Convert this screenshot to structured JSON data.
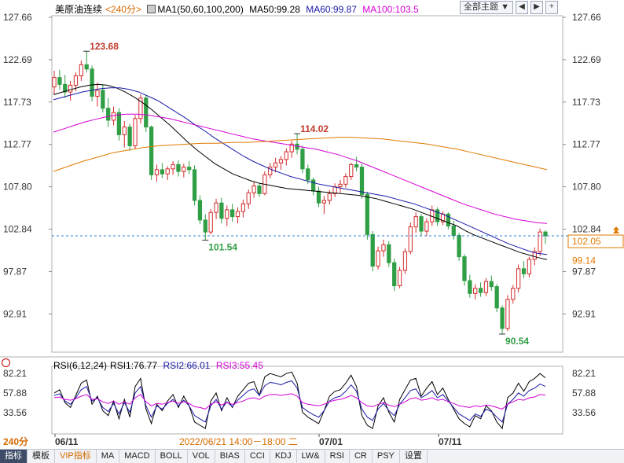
{
  "legend": {
    "instrument": "美原油连续",
    "period": "<240分>",
    "ma_def": "MA1(50,60,100,200)",
    "ma50": "MA50:99.28",
    "ma60": "MA60:99.87",
    "ma100": "MA100:103.5",
    "colors": {
      "ma50": "#000000",
      "ma60": "#1a1aa6",
      "ma100": "#d400d4",
      "ma200": "#e07a00"
    }
  },
  "toolbar": {
    "theme_label": "全部主题",
    "theme_arrow": "▼",
    "prev": "◀",
    "next": "▶",
    "add": "+"
  },
  "price_axis": {
    "ticks": [
      "127.66",
      "122.69",
      "117.73",
      "112.77",
      "107.80",
      "102.84",
      "97.87",
      "92.91"
    ],
    "last_price": "102.05",
    "ma_value": "99.14"
  },
  "annotations": {
    "high1": "123.68",
    "high2": "114.02",
    "low1": "101.54",
    "low2": "90.54"
  },
  "rsi": {
    "title": "RSI(6,12,24)",
    "rsi1": "RSI1:76.77",
    "rsi2": "RSI2:66.01",
    "rsi3": "RSI3:55.45",
    "ticks": [
      "82.21",
      "57.88",
      "33.56"
    ],
    "colors": {
      "rsi1": "#000000",
      "rsi2": "#1a1aa6",
      "rsi3": "#d400d4"
    }
  },
  "time_axis": {
    "period_label": "240分",
    "labels": [
      "06/11",
      "07/01",
      "07/11"
    ],
    "cursor_time": "2022/06/21 14:00－18:00 二"
  },
  "tabs": [
    "指标",
    "模板",
    "VIP指标",
    "MA",
    "MACD",
    "BOLL",
    "VOL",
    "BIAS",
    "CCI",
    "KDJ",
    "LW&",
    "RSI",
    "CR",
    "PSY",
    "设置"
  ],
  "chart_data": {
    "type": "candlestick",
    "title": "",
    "ylim": [
      90.0,
      127.66
    ],
    "x_labels": [
      "06/11",
      "07/01",
      "07/11"
    ],
    "candles_ohlc": [
      [
        119.5,
        121.4,
        118.6,
        120.6
      ],
      [
        120.6,
        121.5,
        119.2,
        119.8
      ],
      [
        119.8,
        120.9,
        118.2,
        118.9
      ],
      [
        118.9,
        120.2,
        117.9,
        119.7
      ],
      [
        119.7,
        121.2,
        119.0,
        120.8
      ],
      [
        120.8,
        122.6,
        120.2,
        122.1
      ],
      [
        122.1,
        123.68,
        121.2,
        121.6
      ],
      [
        121.6,
        122.0,
        117.8,
        118.4
      ],
      [
        118.4,
        120.0,
        117.2,
        119.1
      ],
      [
        119.1,
        119.8,
        116.5,
        117.0
      ],
      [
        117.0,
        118.2,
        114.8,
        115.6
      ],
      [
        115.6,
        117.2,
        115.0,
        116.5
      ],
      [
        116.5,
        117.0,
        113.2,
        113.9
      ],
      [
        113.9,
        115.5,
        112.4,
        114.8
      ],
      [
        114.8,
        115.2,
        112.0,
        112.6
      ],
      [
        112.6,
        116.2,
        112.2,
        115.8
      ],
      [
        115.8,
        118.6,
        115.2,
        118.2
      ],
      [
        118.2,
        118.5,
        114.2,
        114.8
      ],
      [
        114.8,
        115.0,
        108.6,
        109.2
      ],
      [
        109.2,
        110.4,
        108.4,
        109.8
      ],
      [
        109.8,
        110.6,
        108.8,
        109.3
      ],
      [
        109.3,
        110.2,
        108.6,
        109.9
      ],
      [
        109.9,
        110.8,
        109.2,
        110.4
      ],
      [
        110.4,
        110.9,
        109.0,
        109.6
      ],
      [
        109.6,
        110.5,
        108.9,
        110.1
      ],
      [
        110.1,
        110.8,
        109.3,
        109.8
      ],
      [
        109.8,
        110.3,
        105.6,
        106.2
      ],
      [
        106.2,
        106.8,
        103.4,
        103.9
      ],
      [
        103.9,
        104.6,
        101.54,
        102.5
      ],
      [
        102.5,
        105.2,
        102.2,
        104.8
      ],
      [
        104.8,
        106.4,
        104.0,
        105.9
      ],
      [
        105.9,
        106.5,
        103.5,
        104.1
      ],
      [
        104.1,
        105.6,
        103.2,
        105.1
      ],
      [
        105.1,
        105.8,
        103.7,
        104.3
      ],
      [
        104.3,
        105.4,
        103.5,
        104.9
      ],
      [
        104.9,
        106.3,
        104.2,
        105.8
      ],
      [
        105.8,
        107.5,
        105.2,
        107.1
      ],
      [
        107.1,
        108.4,
        106.5,
        107.9
      ],
      [
        107.9,
        108.2,
        106.6,
        107.0
      ],
      [
        107.0,
        109.6,
        106.8,
        109.2
      ],
      [
        109.2,
        110.6,
        108.8,
        110.1
      ],
      [
        110.1,
        111.2,
        109.5,
        110.6
      ],
      [
        110.6,
        111.4,
        109.8,
        111.0
      ],
      [
        111.0,
        112.3,
        110.3,
        111.9
      ],
      [
        111.9,
        113.2,
        111.2,
        112.8
      ],
      [
        112.8,
        114.02,
        111.6,
        112.2
      ],
      [
        112.2,
        112.6,
        109.4,
        109.9
      ],
      [
        109.9,
        110.4,
        108.1,
        108.6
      ],
      [
        108.6,
        108.9,
        106.8,
        107.3
      ],
      [
        107.3,
        107.8,
        105.4,
        105.9
      ],
      [
        105.9,
        106.7,
        104.6,
        106.2
      ],
      [
        106.2,
        107.4,
        105.7,
        107.0
      ],
      [
        107.0,
        108.2,
        106.6,
        107.8
      ],
      [
        107.8,
        108.6,
        107.1,
        108.1
      ],
      [
        108.1,
        109.4,
        107.7,
        109.0
      ],
      [
        109.0,
        110.6,
        108.6,
        110.4
      ],
      [
        110.4,
        111.3,
        109.6,
        110.1
      ],
      [
        110.1,
        110.5,
        106.4,
        106.9
      ],
      [
        106.9,
        107.2,
        101.6,
        102.2
      ],
      [
        102.2,
        102.6,
        97.9,
        98.5
      ],
      [
        98.5,
        100.8,
        98.1,
        100.3
      ],
      [
        100.3,
        101.6,
        99.6,
        101.0
      ],
      [
        101.0,
        101.4,
        98.4,
        98.9
      ],
      [
        98.9,
        99.4,
        95.6,
        96.2
      ],
      [
        96.2,
        98.4,
        95.9,
        98.0
      ],
      [
        98.0,
        100.6,
        97.6,
        100.2
      ],
      [
        100.2,
        103.6,
        99.9,
        103.1
      ],
      [
        103.1,
        104.8,
        102.4,
        104.3
      ],
      [
        104.3,
        104.6,
        102.1,
        102.6
      ],
      [
        102.6,
        104.1,
        102.0,
        103.7
      ],
      [
        103.7,
        105.6,
        103.2,
        105.1
      ],
      [
        105.1,
        105.4,
        103.2,
        103.7
      ],
      [
        103.7,
        104.9,
        103.3,
        104.6
      ],
      [
        104.6,
        104.8,
        102.8,
        103.2
      ],
      [
        103.2,
        103.8,
        101.6,
        102.1
      ],
      [
        102.1,
        102.4,
        99.1,
        99.6
      ],
      [
        99.6,
        99.9,
        96.2,
        96.8
      ],
      [
        96.8,
        97.5,
        94.8,
        95.3
      ],
      [
        95.3,
        96.4,
        94.6,
        95.9
      ],
      [
        95.9,
        96.6,
        94.9,
        95.4
      ],
      [
        95.4,
        97.1,
        95.0,
        96.7
      ],
      [
        96.7,
        97.4,
        95.6,
        96.1
      ],
      [
        96.1,
        96.4,
        93.1,
        93.6
      ],
      [
        93.6,
        93.9,
        90.54,
        91.2
      ],
      [
        91.2,
        95.1,
        90.9,
        94.6
      ],
      [
        94.6,
        96.3,
        94.1,
        95.9
      ],
      [
        95.9,
        98.7,
        95.4,
        98.2
      ],
      [
        98.2,
        99.1,
        97.1,
        97.6
      ],
      [
        97.6,
        99.6,
        97.2,
        99.3
      ],
      [
        99.3,
        100.7,
        98.6,
        100.2
      ],
      [
        100.2,
        102.9,
        99.7,
        102.5
      ],
      [
        102.5,
        102.7,
        101.1,
        102.05
      ]
    ],
    "moving_averages": [
      {
        "name": "MA50",
        "color": "#000000",
        "values": [
          118.6,
          118.9,
          119.2,
          119.5,
          119.7,
          119.8,
          119.7,
          119.4,
          118.9,
          118.3,
          117.6,
          116.8,
          115.9,
          115.0,
          114.0,
          113.0,
          112.1,
          111.3,
          110.5,
          109.9,
          109.3,
          108.9,
          108.5,
          108.2,
          108.0,
          107.8,
          107.6,
          107.5,
          107.4,
          107.3,
          107.2,
          107.1,
          107.0,
          106.9,
          106.8,
          106.6,
          106.4,
          106.1,
          105.8,
          105.5,
          105.2,
          104.8,
          104.4,
          104.0,
          103.6,
          103.2,
          102.6,
          102.1,
          101.7,
          101.3,
          100.9,
          100.5,
          100.1,
          99.8,
          99.5,
          99.28
        ]
      },
      {
        "name": "MA60",
        "color": "#1a1aa6",
        "values": [
          118.0,
          118.3,
          118.6,
          118.9,
          119.1,
          119.3,
          119.4,
          119.4,
          119.2,
          118.9,
          118.4,
          117.9,
          117.2,
          116.5,
          115.8,
          115.0,
          114.3,
          113.5,
          112.8,
          112.1,
          111.4,
          110.8,
          110.3,
          109.8,
          109.4,
          109.0,
          108.7,
          108.4,
          108.1,
          107.9,
          107.7,
          107.5,
          107.3,
          107.1,
          106.9,
          106.7,
          106.4,
          106.1,
          105.8,
          105.4,
          105.0,
          104.6,
          104.1,
          103.6,
          103.1,
          102.6,
          102.1,
          101.6,
          101.1,
          100.7,
          100.3,
          100.0,
          99.87
        ]
      },
      {
        "name": "MA100",
        "color": "#d400d4",
        "values": [
          114.2,
          114.6,
          115.0,
          115.4,
          115.7,
          116.0,
          116.2,
          116.3,
          116.3,
          116.2,
          116.0,
          115.8,
          115.5,
          115.2,
          114.9,
          114.6,
          114.3,
          114.0,
          113.7,
          113.4,
          113.2,
          113.0,
          112.8,
          112.6,
          112.4,
          112.2,
          111.9,
          111.6,
          111.2,
          110.8,
          110.3,
          109.8,
          109.3,
          108.8,
          108.3,
          107.8,
          107.3,
          106.8,
          106.3,
          105.8,
          105.4,
          105.0,
          104.6,
          104.3,
          104.0,
          103.8,
          103.6,
          103.5
        ]
      },
      {
        "name": "MA200",
        "color": "#e07a00",
        "values": [
          109.6,
          110.2,
          110.8,
          111.3,
          111.8,
          112.1,
          112.4,
          112.6,
          112.7,
          112.8,
          112.9,
          112.9,
          113.0,
          113.0,
          113.1,
          113.2,
          113.3,
          113.4,
          113.5,
          113.6,
          113.6,
          113.5,
          113.4,
          113.2,
          113.0,
          112.8,
          112.5,
          112.2,
          111.8,
          111.4,
          111.0,
          110.6,
          110.2,
          109.8
        ]
      }
    ],
    "rsi_series": [
      {
        "name": "RSI1",
        "color": "#000000",
        "values": [
          58,
          62,
          46,
          40,
          55,
          70,
          74,
          44,
          54,
          36,
          30,
          48,
          26,
          50,
          28,
          66,
          76,
          38,
          20,
          44,
          36,
          48,
          56,
          40,
          54,
          42,
          22,
          18,
          14,
          48,
          58,
          36,
          52,
          40,
          54,
          62,
          70,
          72,
          55,
          78,
          82,
          80,
          78,
          82,
          84,
          70,
          34,
          28,
          24,
          20,
          36,
          54,
          60,
          62,
          70,
          80,
          66,
          30,
          18,
          14,
          42,
          52,
          34,
          22,
          50,
          62,
          74,
          76,
          54,
          64,
          72,
          56,
          64,
          50,
          38,
          26,
          20,
          16,
          30,
          26,
          42,
          36,
          22,
          14,
          52,
          58,
          70,
          60,
          72,
          76,
          82,
          76.77
        ]
      },
      {
        "name": "RSI2",
        "color": "#1a1aa6",
        "values": [
          55,
          57,
          48,
          44,
          52,
          62,
          66,
          48,
          52,
          40,
          35,
          45,
          32,
          46,
          34,
          58,
          66,
          42,
          28,
          42,
          38,
          45,
          50,
          42,
          49,
          42,
          30,
          26,
          22,
          42,
          50,
          38,
          47,
          41,
          49,
          55,
          61,
          63,
          55,
          67,
          71,
          70,
          68,
          71,
          73,
          64,
          40,
          35,
          31,
          28,
          36,
          48,
          52,
          54,
          60,
          68,
          60,
          38,
          28,
          24,
          38,
          45,
          36,
          30,
          44,
          52,
          61,
          63,
          52,
          56,
          61,
          52,
          56,
          48,
          40,
          32,
          28,
          24,
          32,
          29,
          38,
          35,
          28,
          22,
          44,
          50,
          58,
          54,
          61,
          64,
          69,
          66.01
        ]
      },
      {
        "name": "RSI3",
        "color": "#d400d4",
        "values": [
          52,
          53,
          50,
          49,
          51,
          54,
          56,
          50,
          51,
          47,
          45,
          48,
          44,
          47,
          44,
          52,
          56,
          47,
          42,
          45,
          44,
          46,
          48,
          45,
          47,
          45,
          41,
          40,
          38,
          44,
          47,
          43,
          46,
          44,
          46,
          48,
          51,
          52,
          50,
          54,
          56,
          56,
          55,
          56,
          57,
          54,
          46,
          44,
          43,
          42,
          44,
          47,
          49,
          50,
          52,
          55,
          52,
          46,
          42,
          41,
          44,
          46,
          43,
          41,
          44,
          47,
          51,
          52,
          49,
          50,
          52,
          49,
          50,
          47,
          45,
          42,
          41,
          40,
          42,
          41,
          43,
          42,
          40,
          38,
          44,
          47,
          50,
          49,
          52,
          53,
          56,
          55.45
        ]
      }
    ]
  }
}
